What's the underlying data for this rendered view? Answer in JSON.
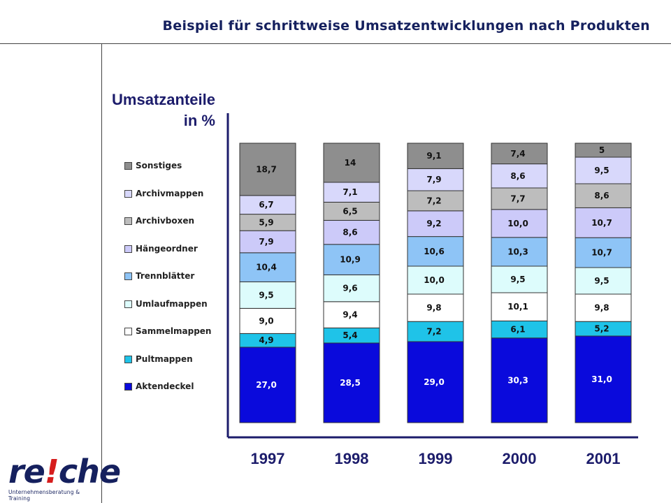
{
  "page": {
    "title": "Beispiel für schrittweise Umsatzentwicklungen nach Produkten",
    "y_title_line1": "Umsatzanteile",
    "y_title_line2": "in %"
  },
  "logo": {
    "word_pre": "re",
    "word_mark": "!",
    "word_post": "che",
    "tagline": "Unternehmensberatung & Training"
  },
  "chart_data": {
    "type": "bar",
    "stacked": true,
    "title": "Beispiel für schrittweise Umsatzentwicklungen nach Produkten",
    "ylabel": "Umsatzanteile in %",
    "xlabel": "",
    "ylim": [
      0,
      100
    ],
    "grid": false,
    "legend_position": "left",
    "categories": [
      "1997",
      "1998",
      "1999",
      "2000",
      "2001"
    ],
    "series": [
      {
        "name": "Aktendeckel",
        "color": "#0a0adc",
        "label_color": "#ffffff",
        "values": [
          27.0,
          28.5,
          29.0,
          30.3,
          31.0
        ],
        "labels": [
          "27,0",
          "28,5",
          "29,0",
          "30,3",
          "31,0"
        ]
      },
      {
        "name": "Pultmappen",
        "color": "#1fc3e8",
        "label_color": "#111111",
        "values": [
          4.9,
          5.4,
          7.2,
          6.1,
          5.2
        ],
        "labels": [
          "4,9",
          "5,4",
          "7,2",
          "6,1",
          "5,2"
        ]
      },
      {
        "name": "Sammelmappen",
        "color": "#ffffff",
        "label_color": "#111111",
        "values": [
          9.0,
          9.4,
          9.8,
          10.1,
          9.8
        ],
        "labels": [
          "9,0",
          "9,4",
          "9,8",
          "10,1",
          "9,8"
        ]
      },
      {
        "name": "Umlaufmappen",
        "color": "#ddfcfc",
        "label_color": "#111111",
        "values": [
          9.5,
          9.6,
          10.0,
          9.5,
          9.5
        ],
        "labels": [
          "9,5",
          "9,6",
          "10,0",
          "9,5",
          "9,5"
        ]
      },
      {
        "name": "Trennblätter",
        "color": "#8ec4f6",
        "label_color": "#111111",
        "values": [
          10.4,
          10.9,
          10.6,
          10.3,
          10.7
        ],
        "labels": [
          "10,4",
          "10,9",
          "10,6",
          "10,3",
          "10,7"
        ]
      },
      {
        "name": "Hängeordner",
        "color": "#cccaf9",
        "label_color": "#111111",
        "values": [
          7.9,
          8.6,
          9.2,
          10.0,
          10.7
        ],
        "labels": [
          "7,9",
          "8,6",
          "9,2",
          "10,0",
          "10,7"
        ]
      },
      {
        "name": "Archivboxen",
        "color": "#bdbdbd",
        "label_color": "#111111",
        "values": [
          5.9,
          6.5,
          7.2,
          7.7,
          8.6
        ],
        "labels": [
          "5,9",
          "6,5",
          "7,2",
          "7,7",
          "8,6"
        ]
      },
      {
        "name": "Archivmappen",
        "color": "#d8d8fb",
        "label_color": "#111111",
        "values": [
          6.7,
          7.1,
          7.9,
          8.6,
          9.5
        ],
        "labels": [
          "6,7",
          "7,1",
          "7,9",
          "8,6",
          "9,5"
        ]
      },
      {
        "name": "Sonstiges",
        "color": "#8e8e8e",
        "label_color": "#111111",
        "values": [
          18.7,
          14,
          9.1,
          7.4,
          5
        ],
        "labels": [
          "18,7",
          "14",
          "9,1",
          "7,4",
          "5"
        ]
      }
    ]
  }
}
